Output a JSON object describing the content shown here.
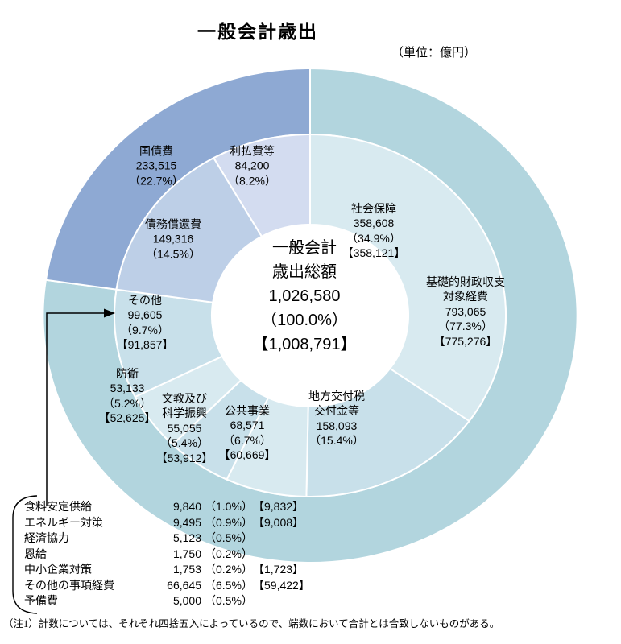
{
  "page": {
    "title": "一般会計歳出",
    "unit_label": "（単位：億円）",
    "note": "（注1）計数については、それぞれ四捨五入によっているので、端数において合計とは合致しないものがある。"
  },
  "chart_data": {
    "type": "pie",
    "subtype": "double-ring-donut",
    "title": "一般会計歳出",
    "unit": "億円",
    "legend_position": "labels-on-chart",
    "total": {
      "line1": "一般会計",
      "line2": "歳出総額",
      "value": 1026580,
      "value_display": "1,026,580",
      "pct_display": "（100.0%）",
      "revised_display": "【1,008,791】"
    },
    "outer_ring": [
      {
        "id": "kiso",
        "label_line1": "基礎的財政収支",
        "label_line2": "対象経費",
        "value": 793065,
        "percent": 77.3,
        "value_display": "793,065",
        "pct_display": "（77.3%）",
        "revised_display": "【775,276】",
        "color": "#b2d5de"
      },
      {
        "id": "kokusaihi",
        "label": "国債費",
        "value": 233515,
        "percent": 22.7,
        "value_display": "233,515",
        "pct_display": "（22.7%）",
        "color": "#8ea9d3"
      }
    ],
    "inner_ring": [
      {
        "id": "shakaihosho",
        "label": "社会保障",
        "value": 358608,
        "percent": 34.9,
        "value_display": "358,608",
        "pct_display": "（34.9%）",
        "revised_display": "【358,121】",
        "color": "#d8eaf0"
      },
      {
        "id": "chihokofuzei",
        "label_line1": "地方交付税",
        "label_line2": "交付金等",
        "value": 158093,
        "percent": 15.4,
        "value_display": "158,093",
        "pct_display": "（15.4%）",
        "color": "#c8e0ea"
      },
      {
        "id": "kokyojigyo",
        "label": "公共事業",
        "value": 68571,
        "percent": 6.7,
        "value_display": "68,571",
        "pct_display": "（6.7%）",
        "revised_display": "【60,669】",
        "color": "#d8eaf0"
      },
      {
        "id": "bunkyokagaku",
        "label_line1": "文教及び",
        "label_line2": "科学振興",
        "value": 55055,
        "percent": 5.4,
        "value_display": "55,055",
        "pct_display": "（5.4%）",
        "revised_display": "【53,912】",
        "color": "#c8e0ea"
      },
      {
        "id": "boei",
        "label": "防衛",
        "value": 53133,
        "percent": 5.2,
        "value_display": "53,133",
        "pct_display": "（5.2%）",
        "revised_display": "【52,625】",
        "color": "#d8eaf0"
      },
      {
        "id": "sonota",
        "label": "その他",
        "value": 99605,
        "percent": 9.7,
        "value_display": "99,605",
        "pct_display": "（9.7%）",
        "revised_display": "【91,857】",
        "color": "#c8e0ea"
      },
      {
        "id": "saimushokan",
        "label": "債務償還費",
        "value": 149316,
        "percent": 14.5,
        "value_display": "149,316",
        "pct_display": "（14.5%）",
        "color": "#bdcfe7"
      },
      {
        "id": "riharaihito",
        "label": "利払費等",
        "value": 84200,
        "percent": 8.2,
        "value_display": "84,200",
        "pct_display": "（8.2%）",
        "color": "#d3dcf0"
      }
    ],
    "other_breakdown": [
      {
        "label": "食料安定供給",
        "value": 9840,
        "value_display": "9,840",
        "pct_display": "（1.0%）",
        "revised_display": "【9,832】"
      },
      {
        "label": "エネルギー対策",
        "value": 9495,
        "value_display": "9,495",
        "pct_display": "（0.9%）",
        "revised_display": "【9,008】"
      },
      {
        "label": "経済協力",
        "value": 5123,
        "value_display": "5,123",
        "pct_display": "（0.5%）",
        "revised_display": ""
      },
      {
        "label": "恩給",
        "value": 1750,
        "value_display": "1,750",
        "pct_display": "（0.2%）",
        "revised_display": ""
      },
      {
        "label": "中小企業対策",
        "value": 1753,
        "value_display": "1,753",
        "pct_display": "（0.2%）",
        "revised_display": "【1,723】"
      },
      {
        "label": "その他の事項経費",
        "value": 66645,
        "value_display": "66,645",
        "pct_display": "（6.5%）",
        "revised_display": "【59,422】"
      },
      {
        "label": "予備費",
        "value": 5000,
        "value_display": "5,000",
        "pct_display": "（0.5%）",
        "revised_display": ""
      }
    ]
  }
}
